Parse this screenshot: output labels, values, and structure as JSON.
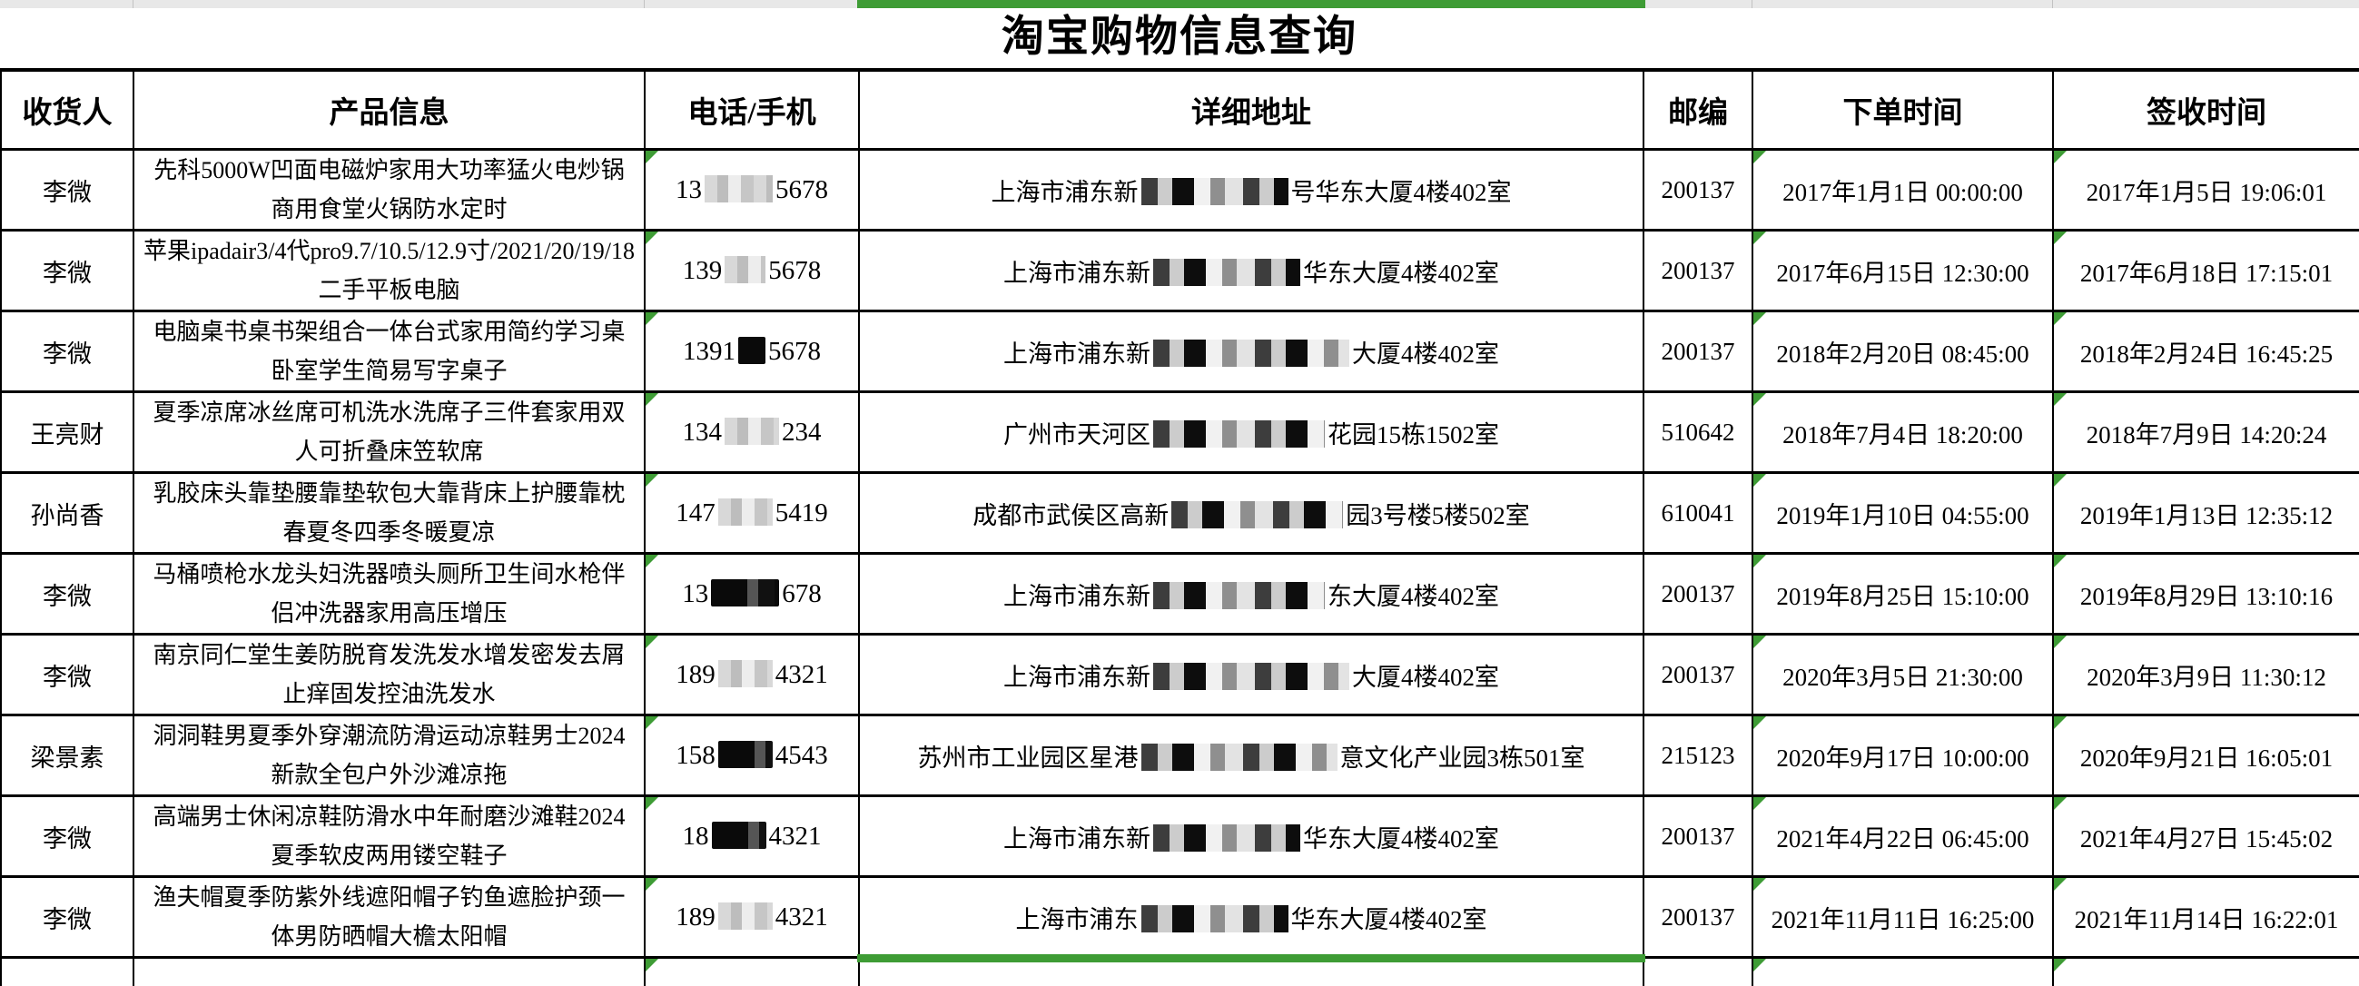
{
  "accent": {
    "green": "#3e9c35",
    "strip_gray": "#e8e8e8",
    "border_black": "#000000"
  },
  "title": "淘宝购物信息查询",
  "table": {
    "headers": [
      "收货人",
      "产品信息",
      "电话/手机",
      "详细地址",
      "邮编",
      "下单时间",
      "签收时间"
    ],
    "rows": [
      {
        "recipient": "李微",
        "product": "先科5000W凹面电磁炉家用大功率猛火电炒锅商用食堂火锅防水定时",
        "phone_prefix": "13",
        "phone_hidden": 5,
        "phone_suffix": "5678",
        "phone_redact": "light",
        "addr_prefix": "上海市浦东新",
        "addr_hidden": 6,
        "addr_suffix": "号华东大厦4楼402室",
        "zip": "200137",
        "order_time": "2017年1月1日 00:00:00",
        "sign_time": "2017年1月5日 19:06:01"
      },
      {
        "recipient": "李微",
        "product": "苹果ipadair3/4代pro9.7/10.5/12.9寸/2021/20/19/18二手平板电脑",
        "phone_prefix": "139",
        "phone_hidden": 3,
        "phone_suffix": "5678",
        "phone_redact": "light",
        "addr_prefix": "上海市浦东新",
        "addr_hidden": 6,
        "addr_suffix": "华东大厦4楼402室",
        "zip": "200137",
        "order_time": "2017年6月15日 12:30:00",
        "sign_time": "2017年6月18日 17:15:01"
      },
      {
        "recipient": "李微",
        "product": "电脑桌书桌书架组合一体台式家用简约学习桌卧室学生简易写字桌子",
        "phone_prefix": "1391",
        "phone_hidden": 2,
        "phone_suffix": "5678",
        "phone_redact": "dark",
        "addr_prefix": "上海市浦东新",
        "addr_hidden": 8,
        "addr_suffix": "大厦4楼402室",
        "zip": "200137",
        "order_time": "2018年2月20日 08:45:00",
        "sign_time": "2018年2月24日 16:45:25"
      },
      {
        "recipient": "王亮财",
        "product": "夏季凉席冰丝席可机洗水洗席子三件套家用双人可折叠床笠软席",
        "phone_prefix": "134",
        "phone_hidden": 4,
        "phone_suffix": "234",
        "phone_redact": "light",
        "addr_prefix": "广州市天河区",
        "addr_hidden": 7,
        "addr_suffix": "花园15栋1502室",
        "zip": "510642",
        "order_time": "2018年7月4日 18:20:00",
        "sign_time": "2018年7月9日 14:20:24"
      },
      {
        "recipient": "孙尚香",
        "product": "乳胶床头靠垫腰靠垫软包大靠背床上护腰靠枕春夏冬四季冬暖夏凉",
        "phone_prefix": "147",
        "phone_hidden": 4,
        "phone_suffix": "5419",
        "phone_redact": "light",
        "addr_prefix": "成都市武侯区高新",
        "addr_hidden": 7,
        "addr_suffix": "园3号楼5楼502室",
        "zip": "610041",
        "order_time": "2019年1月10日 04:55:00",
        "sign_time": "2019年1月13日 12:35:12"
      },
      {
        "recipient": "李微",
        "product": "马桶喷枪水龙头妇洗器喷头厕所卫生间水枪伴侣冲洗器家用高压增压",
        "phone_prefix": "13",
        "phone_hidden": 5,
        "phone_suffix": "678",
        "phone_redact": "dark",
        "addr_prefix": "上海市浦东新",
        "addr_hidden": 7,
        "addr_suffix": "东大厦4楼402室",
        "zip": "200137",
        "order_time": "2019年8月25日 15:10:00",
        "sign_time": "2019年8月29日 13:10:16"
      },
      {
        "recipient": "李微",
        "product": "南京同仁堂生姜防脱育发洗发水增发密发去屑止痒固发控油洗发水",
        "phone_prefix": "189",
        "phone_hidden": 4,
        "phone_suffix": "4321",
        "phone_redact": "light",
        "addr_prefix": "上海市浦东新",
        "addr_hidden": 8,
        "addr_suffix": "大厦4楼402室",
        "zip": "200137",
        "order_time": "2020年3月5日 21:30:00",
        "sign_time": "2020年3月9日 11:30:12"
      },
      {
        "recipient": "梁景素",
        "product": "洞洞鞋男夏季外穿潮流防滑运动凉鞋男士2024新款全包户外沙滩凉拖",
        "phone_prefix": "158",
        "phone_hidden": 4,
        "phone_suffix": "4543",
        "phone_redact": "dark",
        "addr_prefix": "苏州市工业园区星港",
        "addr_hidden": 8,
        "addr_suffix": "意文化产业园3栋501室",
        "zip": "215123",
        "order_time": "2020年9月17日 10:00:00",
        "sign_time": "2020年9月21日 16:05:01"
      },
      {
        "recipient": "李微",
        "product": "高端男士休闲凉鞋防滑水中年耐磨沙滩鞋2024夏季软皮两用镂空鞋子",
        "phone_prefix": "18",
        "phone_hidden": 4,
        "phone_suffix": "4321",
        "phone_redact": "dark",
        "addr_prefix": "上海市浦东新",
        "addr_hidden": 6,
        "addr_suffix": "华东大厦4楼402室",
        "zip": "200137",
        "order_time": "2021年4月22日 06:45:00",
        "sign_time": "2021年4月27日 15:45:02"
      },
      {
        "recipient": "李微",
        "product": "渔夫帽夏季防紫外线遮阳帽子钓鱼遮脸护颈一体男防晒帽大檐太阳帽",
        "phone_prefix": "189",
        "phone_hidden": 4,
        "phone_suffix": "4321",
        "phone_redact": "light",
        "addr_prefix": "上海市浦东",
        "addr_hidden": 6,
        "addr_suffix": "华东大厦4楼402室",
        "zip": "200137",
        "order_time": "2021年11月11日 16:25:00",
        "sign_time": "2021年11月14日 16:22:01"
      }
    ]
  },
  "layout_markers": {
    "selected_column": "详细地址",
    "flagged_columns": [
      "电话/手机",
      "下单时间",
      "签收时间"
    ]
  }
}
